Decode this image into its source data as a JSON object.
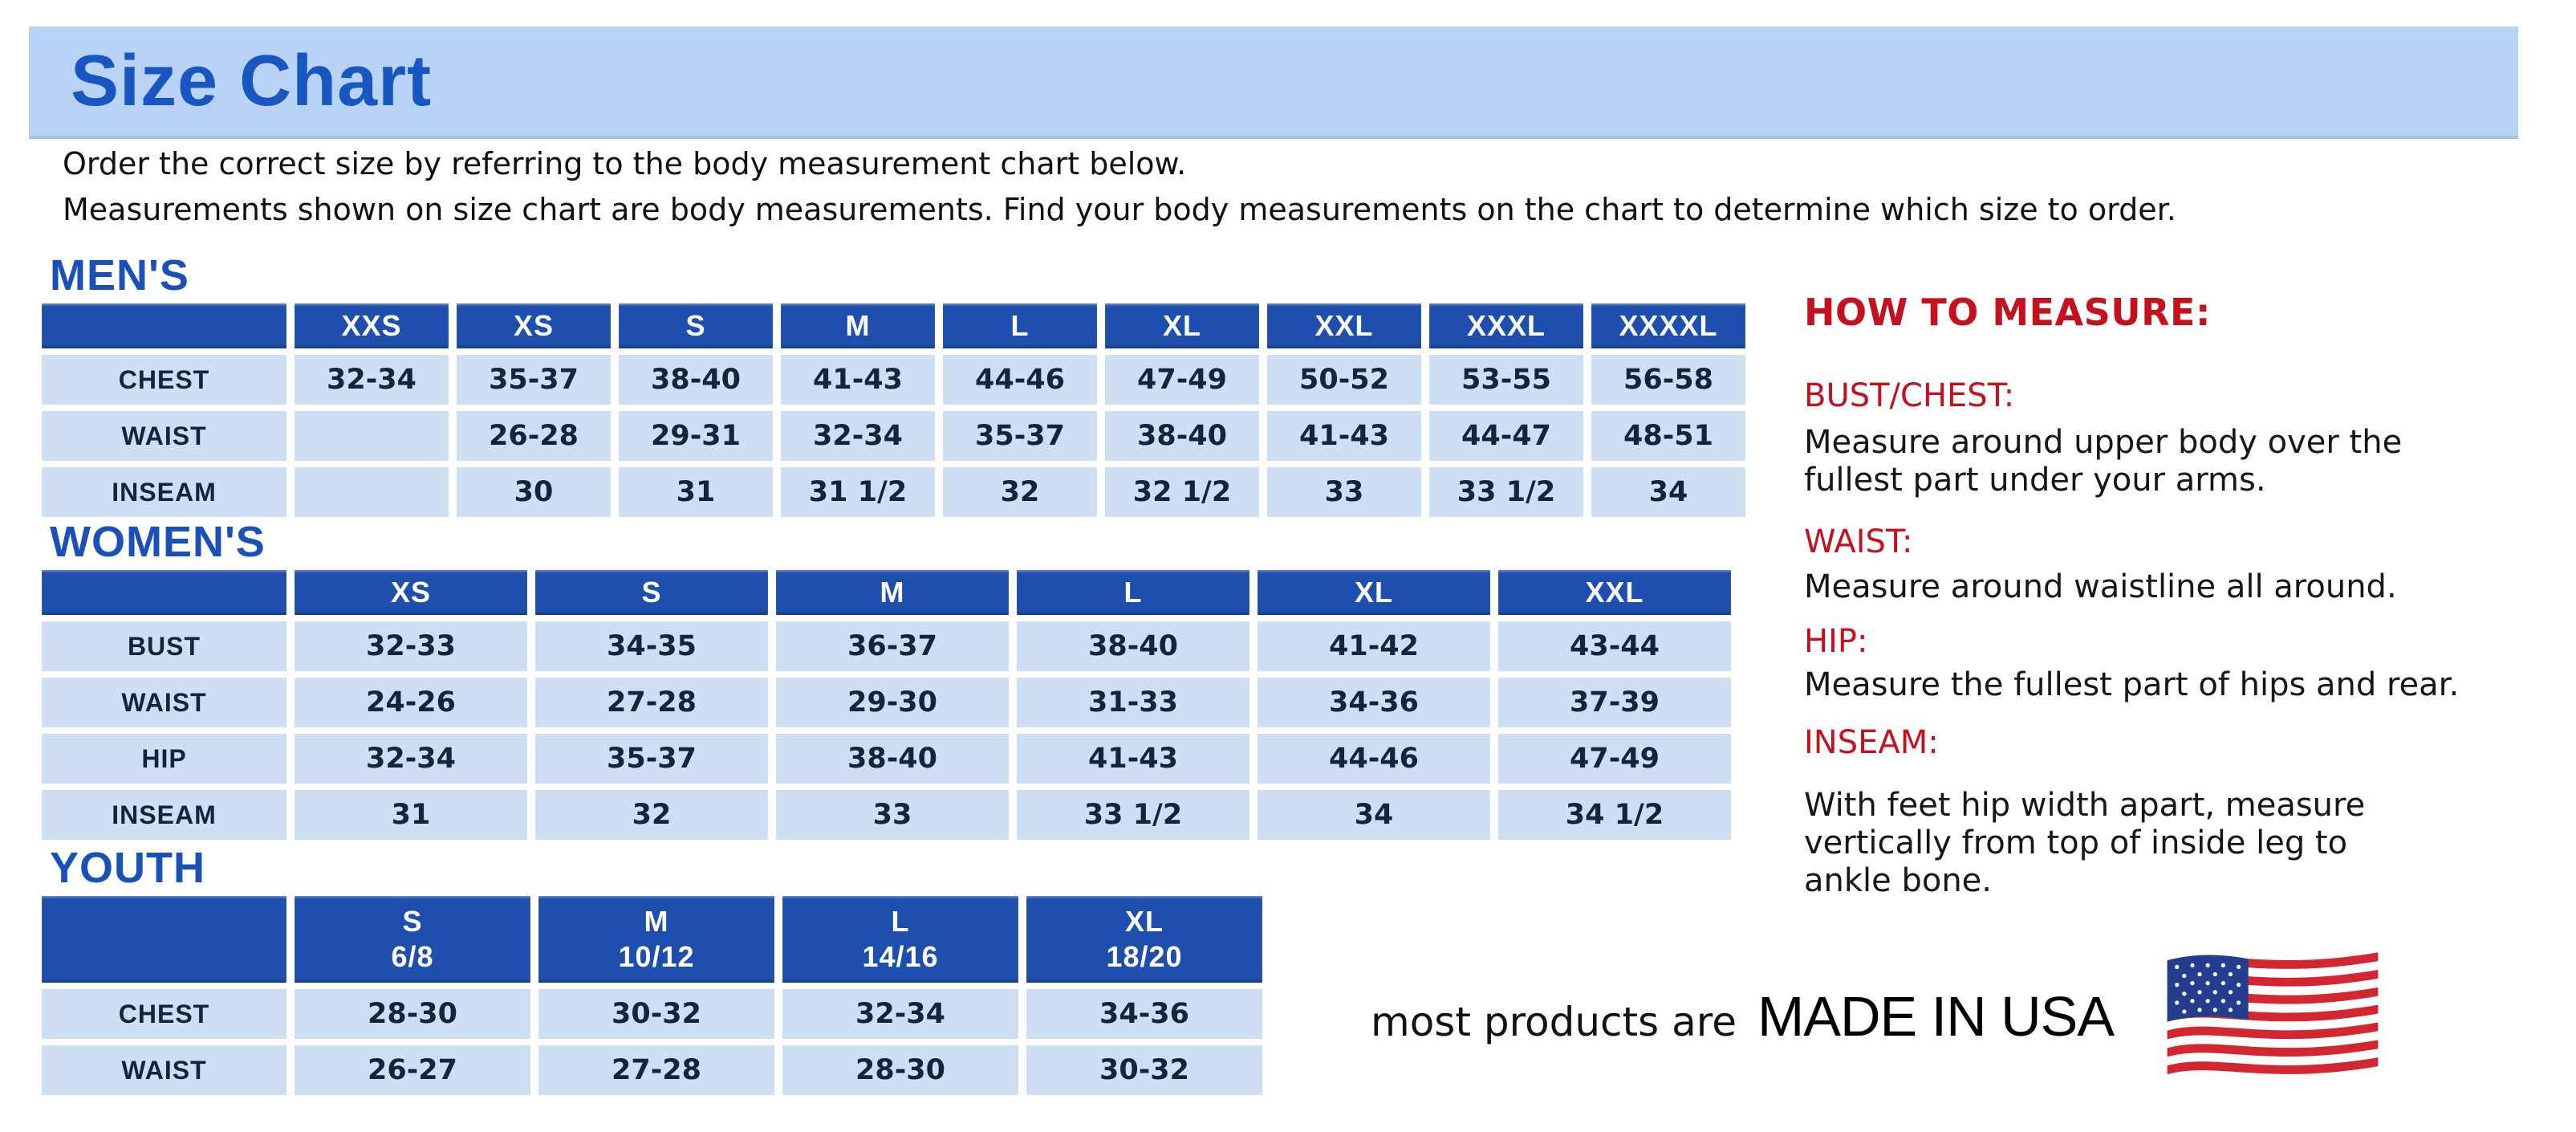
{
  "page": {
    "title": "Size Chart",
    "intro_line1": "Order the correct size by referring to the body measurement chart below.",
    "intro_line2": "Measurements shown on size chart are body measurements.  Find your body measurements on the chart to determine which size to order."
  },
  "colors": {
    "banner_blue": "#b9d3f6",
    "heading_blue": "#1a51b8",
    "table_header_blue": "#1e4fae",
    "table_cell_blue": "#cedff3",
    "accent_red": "#c4111d",
    "value_text": "#16233e"
  },
  "tables": [
    {
      "heading": "MEN'S",
      "columns": [
        "XXS",
        "XS",
        "S",
        "M",
        "L",
        "XL",
        "XXL",
        "XXXL",
        "XXXXL"
      ],
      "rows": [
        {
          "label": "CHEST",
          "values": [
            "32-34",
            "35-37",
            "38-40",
            "41-43",
            "44-46",
            "47-49",
            "50-52",
            "53-55",
            "56-58"
          ]
        },
        {
          "label": "WAIST",
          "values": [
            "",
            "26-28",
            "29-31",
            "32-34",
            "35-37",
            "38-40",
            "41-43",
            "44-47",
            "48-51"
          ]
        },
        {
          "label": "INSEAM",
          "values": [
            "",
            "30",
            "31",
            "31 1/2",
            "32",
            "32 1/2",
            "33",
            "33 1/2",
            "34"
          ]
        }
      ]
    },
    {
      "heading": "WOMEN'S",
      "columns": [
        "XS",
        "S",
        "M",
        "L",
        "XL",
        "XXL"
      ],
      "rows": [
        {
          "label": "BUST",
          "values": [
            "32-33",
            "34-35",
            "36-37",
            "38-40",
            "41-42",
            "43-44"
          ]
        },
        {
          "label": "WAIST",
          "values": [
            "24-26",
            "27-28",
            "29-30",
            "31-33",
            "34-36",
            "37-39"
          ]
        },
        {
          "label": "HIP",
          "values": [
            "32-34",
            "35-37",
            "38-40",
            "41-43",
            "44-46",
            "47-49"
          ]
        },
        {
          "label": "INSEAM",
          "values": [
            "31",
            "32",
            "33",
            "33 1/2",
            "34",
            "34 1/2"
          ]
        }
      ]
    },
    {
      "heading": "YOUTH",
      "columns": [
        "S\n6/8",
        "M\n10/12",
        "L\n14/16",
        "XL\n18/20"
      ],
      "rows": [
        {
          "label": "CHEST",
          "values": [
            "28-30",
            "30-32",
            "32-34",
            "34-36"
          ]
        },
        {
          "label": "WAIST",
          "values": [
            "26-27",
            "27-28",
            "28-30",
            "30-32"
          ]
        }
      ]
    }
  ],
  "how_to_measure": {
    "heading": "HOW TO MEASURE:",
    "items": [
      {
        "term": "BUST/CHEST:",
        "desc": "Measure around upper body over the\nfullest part under your arms."
      },
      {
        "term": "WAIST:",
        "desc": "Measure around waistline all around."
      },
      {
        "term": "HIP:",
        "desc": "Measure the fullest part of hips and rear."
      },
      {
        "term": "INSEAM:",
        "desc": "With feet hip width apart, measure\nvertically from top of inside leg to\nankle bone."
      }
    ]
  },
  "footer": {
    "made_in_prefix": "most products are",
    "made_in": "MADE IN USA",
    "flag_icon": "us-flag-icon"
  }
}
